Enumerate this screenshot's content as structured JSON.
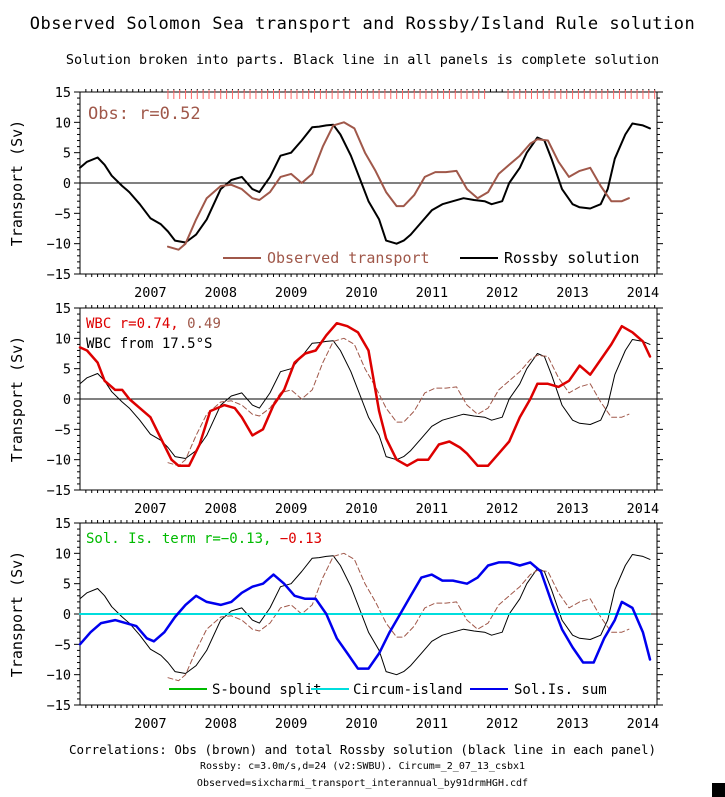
{
  "title": "Observed Solomon Sea transport and Rossby/Island Rule solution",
  "subtitle": "Solution broken into parts. Black line in all panels is complete solution",
  "footer": {
    "line1": "Correlations: Obs (brown) and total Rossby solution (black line in each panel)",
    "line2": "Rossby: c=3.0m/s,d=24 (v2:SWBU). Circum=_2_07_13_csbx1",
    "line3": "Observed=sixcharmi_transport_interannual_by91drmHGH.cdf"
  },
  "colors": {
    "observed": "#a0584a",
    "rossby": "#000000",
    "wbc": "#dd0000",
    "sbound": "#00bb00",
    "circum": "#00dddd",
    "solis": "#0000ee",
    "zero_line": "#000000"
  },
  "chart_data": [
    {
      "type": "line",
      "title": "",
      "ylabel": "Transport (Sv)",
      "ylim": [
        -15,
        15
      ],
      "yticks": [
        -15,
        -10,
        -5,
        0,
        5,
        10,
        15
      ],
      "xlim": [
        2006.5,
        2014.7
      ],
      "xtick_labels": [
        "2007",
        "2008",
        "2009",
        "2010",
        "2011",
        "2012",
        "2013",
        "2014"
      ],
      "annotations": [
        {
          "text": "Obs: r=0.52",
          "color": "#a0584a"
        }
      ],
      "legend": {
        "placement": "bottom",
        "entries": [
          {
            "name": "Observed transport",
            "color": "#a0584a"
          },
          {
            "name": "Rossby solution",
            "color": "#000000"
          }
        ]
      },
      "series": [
        {
          "name": "Rossby solution",
          "style": "solid",
          "color": "#000000",
          "x": [
            2006.5,
            2006.6,
            2006.75,
            2006.85,
            2006.95,
            2007.1,
            2007.2,
            2007.35,
            2007.5,
            2007.65,
            2007.75,
            2007.85,
            2008.0,
            2008.15,
            2008.3,
            2008.5,
            2008.65,
            2008.8,
            2008.95,
            2009.05,
            2009.2,
            2009.35,
            2009.5,
            2009.65,
            2009.8,
            2009.9,
            2010.0,
            2010.1,
            2010.2,
            2010.35,
            2010.5,
            2010.6,
            2010.75,
            2010.85,
            2011.0,
            2011.1,
            2011.2,
            2011.35,
            2011.5,
            2011.65,
            2011.8,
            2011.95,
            2012.1,
            2012.25,
            2012.35,
            2012.5,
            2012.6,
            2012.75,
            2012.85,
            2013.0,
            2013.1,
            2013.2,
            2013.35,
            2013.5,
            2013.6,
            2013.75,
            2013.9,
            2014.0,
            2014.1,
            2014.25,
            2014.35,
            2014.5,
            2014.6
          ],
          "y": [
            2.5,
            3.5,
            4.2,
            3.0,
            1.2,
            -0.5,
            -1.5,
            -3.5,
            -5.8,
            -6.8,
            -8.0,
            -9.5,
            -9.8,
            -8.5,
            -6.0,
            -1.0,
            0.5,
            1.0,
            -1.0,
            -1.5,
            1.0,
            4.5,
            5.0,
            7.0,
            9.2,
            9.3,
            9.5,
            9.6,
            8.0,
            4.5,
            0.0,
            -3.0,
            -6.0,
            -9.5,
            -10.0,
            -9.5,
            -8.5,
            -6.5,
            -4.5,
            -3.5,
            -3.0,
            -2.5,
            -2.8,
            -3.0,
            -3.5,
            -3.0,
            0.0,
            2.5,
            5.0,
            7.5,
            7.0,
            4.0,
            -1.0,
            -3.5,
            -4.0,
            -4.2,
            -3.5,
            -1.0,
            4.0,
            8.0,
            9.8,
            9.5,
            9.0
          ]
        },
        {
          "name": "Observed transport",
          "style": "solid",
          "color": "#a0584a",
          "x": [
            2007.75,
            2007.9,
            2008.0,
            2008.15,
            2008.3,
            2008.5,
            2008.65,
            2008.8,
            2008.95,
            2009.05,
            2009.2,
            2009.35,
            2009.5,
            2009.65,
            2009.8,
            2009.95,
            2010.1,
            2010.25,
            2010.4,
            2010.55,
            2010.7,
            2010.85,
            2011.0,
            2011.1,
            2011.25,
            2011.4,
            2011.55,
            2011.7,
            2011.85,
            2012.0,
            2012.15,
            2012.3,
            2012.45,
            2012.6,
            2012.75,
            2012.9,
            2013.0,
            2013.15,
            2013.3,
            2013.45,
            2013.6,
            2013.75,
            2013.9,
            2014.05,
            2014.2,
            2014.3
          ],
          "y": [
            -10.5,
            -11.0,
            -10.0,
            -6.0,
            -2.5,
            -0.5,
            -0.3,
            -1.0,
            -2.5,
            -2.8,
            -1.5,
            1.0,
            1.5,
            0.0,
            1.5,
            6.0,
            9.5,
            10.0,
            9.0,
            5.0,
            2.0,
            -1.5,
            -3.8,
            -3.8,
            -2.0,
            1.0,
            1.8,
            1.8,
            2.0,
            -1.0,
            -2.5,
            -1.5,
            1.5,
            3.0,
            4.5,
            6.5,
            7.2,
            7.0,
            3.5,
            1.0,
            2.0,
            2.5,
            -0.5,
            -3.0,
            -3.0,
            -2.5
          ]
        }
      ]
    },
    {
      "type": "line",
      "title": "",
      "ylabel": "Transport (Sv)",
      "ylim": [
        -15,
        15
      ],
      "yticks": [
        -15,
        -10,
        -5,
        0,
        5,
        10,
        15
      ],
      "xlim": [
        2006.5,
        2014.7
      ],
      "xtick_labels": [
        "2007",
        "2008",
        "2009",
        "2010",
        "2011",
        "2012",
        "2013",
        "2014"
      ],
      "annotations": [
        {
          "text": "WBC r=0.74, ",
          "color": "#dd0000"
        },
        {
          "text": "0.49",
          "color": "#a0584a"
        },
        {
          "text": "WBC from 17.5°S",
          "color": "#000000"
        }
      ],
      "series": [
        {
          "name": "Rossby solution",
          "style": "thin",
          "color": "#000000",
          "ref": 0
        },
        {
          "name": "Observed transport",
          "style": "dashed",
          "color": "#a0584a",
          "ref": 1
        },
        {
          "name": "WBC",
          "style": "thick",
          "color": "#dd0000",
          "x": [
            2006.5,
            2006.6,
            2006.75,
            2006.85,
            2007.0,
            2007.1,
            2007.2,
            2007.35,
            2007.5,
            2007.65,
            2007.8,
            2007.9,
            2008.05,
            2008.2,
            2008.35,
            2008.55,
            2008.7,
            2008.8,
            2008.95,
            2009.1,
            2009.25,
            2009.4,
            2009.55,
            2009.7,
            2009.85,
            2010.0,
            2010.15,
            2010.3,
            2010.45,
            2010.6,
            2010.75,
            2010.85,
            2011.0,
            2011.15,
            2011.3,
            2011.45,
            2011.6,
            2011.75,
            2011.9,
            2012.0,
            2012.15,
            2012.3,
            2012.45,
            2012.6,
            2012.75,
            2012.9,
            2013.0,
            2013.15,
            2013.3,
            2013.45,
            2013.6,
            2013.75,
            2013.9,
            2014.05,
            2014.2,
            2014.35,
            2014.5,
            2014.6
          ],
          "y": [
            8.5,
            8.0,
            6.0,
            3.0,
            1.5,
            1.5,
            0.0,
            -1.5,
            -3.0,
            -6.5,
            -10.0,
            -11.0,
            -11.0,
            -7.5,
            -2.0,
            -1.0,
            -1.5,
            -3.0,
            -6.0,
            -5.0,
            -1.0,
            1.5,
            6.0,
            7.5,
            8.0,
            10.5,
            12.5,
            12.0,
            11.0,
            8.0,
            -2.0,
            -6.5,
            -10.0,
            -11.0,
            -10.0,
            -10.0,
            -7.5,
            -7.0,
            -8.0,
            -9.0,
            -11.0,
            -11.0,
            -9.0,
            -7.0,
            -3.0,
            0.0,
            2.5,
            2.5,
            2.0,
            3.0,
            5.5,
            4.0,
            6.5,
            9.0,
            12.0,
            11.0,
            9.5,
            7.0
          ]
        }
      ]
    },
    {
      "type": "line",
      "title": "",
      "ylabel": "Transport (Sv)",
      "ylim": [
        -15,
        15
      ],
      "yticks": [
        -15,
        -10,
        -5,
        0,
        5,
        10,
        15
      ],
      "xlim": [
        2006.5,
        2014.7
      ],
      "xtick_labels": [
        "2007",
        "2008",
        "2009",
        "2010",
        "2011",
        "2012",
        "2013",
        "2014"
      ],
      "annotations": [
        {
          "text": "Sol. Is. term r=-0.13, ",
          "color": "#00bb00"
        },
        {
          "text": "-0.13",
          "color": "#dd0000"
        }
      ],
      "legend": {
        "placement": "bottom",
        "entries": [
          {
            "name": "S-bound split",
            "color": "#00bb00"
          },
          {
            "name": "Circum-island",
            "color": "#00dddd"
          },
          {
            "name": "Sol.Is. sum",
            "color": "#0000ee"
          }
        ]
      },
      "series": [
        {
          "name": "Rossby solution",
          "style": "thin",
          "color": "#000000",
          "ref": 0
        },
        {
          "name": "Observed transport",
          "style": "dashed",
          "color": "#a0584a",
          "ref": 1
        },
        {
          "name": "S-bound split",
          "style": "solid",
          "color": "#00bb00",
          "x": [
            2006.6,
            2007.3
          ],
          "y": [
            0.0,
            0.0
          ]
        },
        {
          "name": "Circum-island",
          "style": "solid",
          "color": "#00dddd",
          "x": [
            2006.5,
            2014.6
          ],
          "y": [
            0.0,
            0.0
          ]
        },
        {
          "name": "Sol.Is. sum",
          "style": "thick",
          "color": "#0000ee",
          "x": [
            2006.5,
            2006.65,
            2006.8,
            2007.0,
            2007.15,
            2007.3,
            2007.45,
            2007.55,
            2007.7,
            2007.85,
            2008.0,
            2008.15,
            2008.3,
            2008.5,
            2008.65,
            2008.8,
            2008.95,
            2009.1,
            2009.25,
            2009.4,
            2009.55,
            2009.7,
            2009.85,
            2010.0,
            2010.15,
            2010.3,
            2010.45,
            2010.6,
            2010.75,
            2010.9,
            2011.05,
            2011.2,
            2011.35,
            2011.5,
            2011.65,
            2011.8,
            2012.0,
            2012.15,
            2012.3,
            2012.45,
            2012.6,
            2012.75,
            2012.9,
            2013.05,
            2013.2,
            2013.35,
            2013.5,
            2013.65,
            2013.8,
            2013.95,
            2014.1,
            2014.2,
            2014.35,
            2014.5,
            2014.6
          ],
          "y": [
            -5.0,
            -3.0,
            -1.5,
            -1.0,
            -1.5,
            -2.0,
            -4.0,
            -4.5,
            -3.0,
            -0.5,
            1.5,
            3.0,
            2.0,
            1.5,
            2.0,
            3.5,
            4.5,
            5.0,
            6.5,
            5.0,
            3.0,
            2.5,
            2.5,
            0.0,
            -4.0,
            -6.5,
            -9.0,
            -9.0,
            -6.5,
            -3.0,
            0.0,
            3.0,
            6.0,
            6.5,
            5.5,
            5.5,
            5.0,
            6.0,
            8.0,
            8.5,
            8.5,
            8.0,
            8.5,
            7.0,
            2.0,
            -2.5,
            -5.5,
            -8.0,
            -8.0,
            -4.0,
            -1.0,
            2.0,
            1.0,
            -3.0,
            -7.5
          ]
        }
      ]
    }
  ]
}
